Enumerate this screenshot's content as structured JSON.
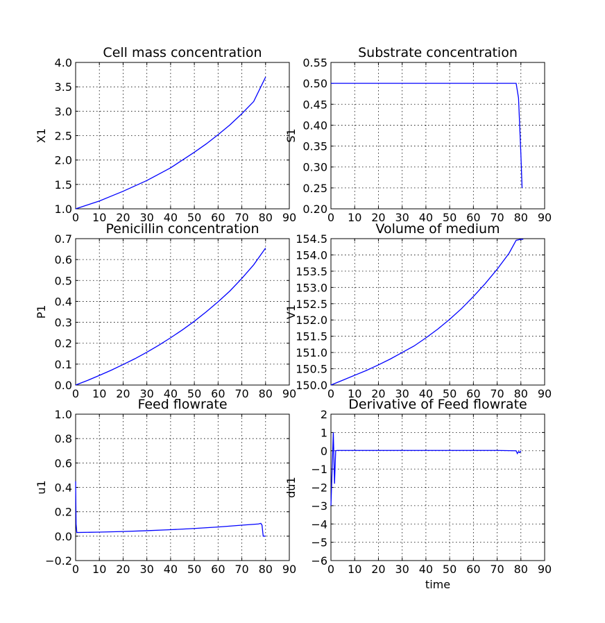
{
  "chart_data": [
    {
      "type": "line",
      "title": "Cell mass concentration",
      "xlabel": "",
      "ylabel": "X1",
      "xlim": [
        0,
        90
      ],
      "ylim": [
        1.0,
        4.0
      ],
      "xticks": [
        "0",
        "10",
        "20",
        "30",
        "40",
        "50",
        "60",
        "70",
        "80",
        "90"
      ],
      "yticks": [
        "1.0",
        "1.5",
        "2.0",
        "2.5",
        "3.0",
        "3.5",
        "4.0"
      ],
      "grid": true,
      "series": [
        {
          "color": "#0000ff",
          "x": [
            0,
            5,
            10,
            15,
            20,
            25,
            30,
            35,
            40,
            45,
            50,
            55,
            60,
            65,
            70,
            75,
            80
          ],
          "y": [
            1.0,
            1.08,
            1.16,
            1.26,
            1.36,
            1.47,
            1.58,
            1.71,
            1.84,
            2.0,
            2.16,
            2.33,
            2.52,
            2.72,
            2.95,
            3.2,
            3.7
          ]
        }
      ]
    },
    {
      "type": "line",
      "title": "Substrate concentration",
      "xlabel": "",
      "ylabel": "S1",
      "xlim": [
        0,
        90
      ],
      "ylim": [
        0.2,
        0.55
      ],
      "xticks": [
        "0",
        "10",
        "20",
        "30",
        "40",
        "50",
        "60",
        "70",
        "80",
        "90"
      ],
      "yticks": [
        "0.20",
        "0.25",
        "0.30",
        "0.35",
        "0.40",
        "0.45",
        "0.50",
        "0.55"
      ],
      "grid": true,
      "series": [
        {
          "color": "#0000ff",
          "x": [
            0,
            78,
            79,
            80,
            80.5
          ],
          "y": [
            0.5,
            0.5,
            0.465,
            0.33,
            0.25
          ]
        }
      ]
    },
    {
      "type": "line",
      "title": "Penicillin concentration",
      "xlabel": "",
      "ylabel": "P1",
      "xlim": [
        0,
        90
      ],
      "ylim": [
        0.0,
        0.7
      ],
      "xticks": [
        "0",
        "10",
        "20",
        "30",
        "40",
        "50",
        "60",
        "70",
        "80",
        "90"
      ],
      "yticks": [
        "0.0",
        "0.1",
        "0.2",
        "0.3",
        "0.4",
        "0.5",
        "0.6",
        "0.7"
      ],
      "grid": true,
      "series": [
        {
          "color": "#0000ff",
          "x": [
            0,
            5,
            10,
            15,
            20,
            25,
            30,
            35,
            40,
            45,
            50,
            55,
            60,
            65,
            70,
            75,
            80
          ],
          "y": [
            0.0,
            0.022,
            0.046,
            0.071,
            0.098,
            0.126,
            0.157,
            0.19,
            0.226,
            0.264,
            0.305,
            0.35,
            0.398,
            0.45,
            0.51,
            0.575,
            0.655
          ]
        }
      ]
    },
    {
      "type": "line",
      "title": "Volume of medium",
      "xlabel": "",
      "ylabel": "V1",
      "xlim": [
        0,
        90
      ],
      "ylim": [
        150.0,
        154.5
      ],
      "xticks": [
        "0",
        "10",
        "20",
        "30",
        "40",
        "50",
        "60",
        "70",
        "80",
        "90"
      ],
      "yticks": [
        "150.0",
        "150.5",
        "151.0",
        "151.5",
        "152.0",
        "152.5",
        "153.0",
        "153.5",
        "154.0",
        "154.5"
      ],
      "grid": true,
      "series": [
        {
          "color": "#0000ff",
          "x": [
            0,
            5,
            10,
            15,
            20,
            25,
            30,
            35,
            40,
            45,
            50,
            55,
            60,
            65,
            70,
            75,
            78,
            80,
            81
          ],
          "y": [
            150.0,
            150.15,
            150.3,
            150.45,
            150.62,
            150.8,
            151.0,
            151.2,
            151.45,
            151.72,
            152.02,
            152.35,
            152.72,
            153.12,
            153.56,
            154.05,
            154.45,
            154.48,
            154.48
          ]
        }
      ]
    },
    {
      "type": "line",
      "title": "Feed flowrate",
      "xlabel": "",
      "ylabel": "u1",
      "xlim": [
        0,
        90
      ],
      "ylim": [
        -0.2,
        1.0
      ],
      "xticks": [
        "0",
        "10",
        "20",
        "30",
        "40",
        "50",
        "60",
        "70",
        "80",
        "90"
      ],
      "yticks": [
        "−0.2",
        "0.0",
        "0.2",
        "0.4",
        "0.6",
        "0.8",
        "1.0"
      ],
      "grid": true,
      "series": [
        {
          "color": "#0000ff",
          "x": [
            0,
            0.2,
            0.5,
            10,
            20,
            30,
            40,
            50,
            60,
            70,
            77,
            78,
            78.5,
            79,
            79.5,
            80
          ],
          "y": [
            0.45,
            0.1,
            0.03,
            0.033,
            0.038,
            0.045,
            0.053,
            0.063,
            0.075,
            0.09,
            0.1,
            0.105,
            0.09,
            0.0,
            0.0,
            0.0
          ]
        }
      ]
    },
    {
      "type": "line",
      "title": "Derivative of Feed flowrate",
      "xlabel": "time",
      "ylabel": "du1",
      "xlim": [
        0,
        90
      ],
      "ylim": [
        -6,
        2
      ],
      "xticks": [
        "0",
        "10",
        "20",
        "30",
        "40",
        "50",
        "60",
        "70",
        "80",
        "90"
      ],
      "yticks": [
        "−6",
        "−5",
        "−4",
        "−3",
        "−2",
        "−1",
        "0",
        "1",
        "2"
      ],
      "grid": true,
      "series": [
        {
          "color": "#0000ff",
          "x": [
            0,
            0.5,
            1,
            1.5,
            2,
            2.5,
            3,
            10,
            20,
            30,
            40,
            50,
            60,
            70,
            78,
            78.5,
            79,
            79.5,
            80
          ],
          "y": [
            -3.0,
            -1.0,
            1.0,
            -1.8,
            0.0,
            0.02,
            0.02,
            0.02,
            0.02,
            0.02,
            0.02,
            0.02,
            0.02,
            0.02,
            0.0,
            -0.15,
            -0.05,
            -0.1,
            0.0
          ]
        }
      ]
    }
  ]
}
